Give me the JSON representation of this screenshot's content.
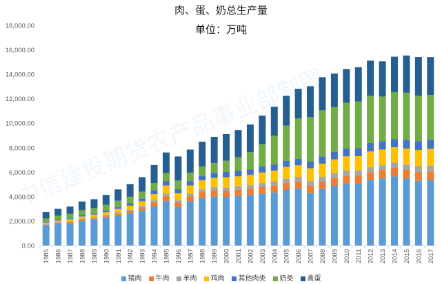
{
  "chart_data": {
    "type": "bar",
    "stacked": true,
    "title": "肉、蛋、奶总生产量",
    "subtitle": "单位：万吨",
    "watermark": "中信建投期货农产品事业部制图",
    "xlabel": "",
    "ylabel": "",
    "ylim": [
      0,
      18000
    ],
    "yticks": [
      "0.00",
      "2,000.00",
      "4,000.00",
      "6,000.00",
      "8,000.00",
      "10,000.00",
      "12,000.00",
      "14,000.00",
      "16,000.00",
      "18,000.00"
    ],
    "grid": false,
    "legend": "bottom",
    "categories": [
      "1985",
      "1986",
      "1987",
      "1988",
      "1989",
      "1990",
      "1991",
      "1992",
      "1993",
      "1994",
      "1995",
      "1996",
      "1997",
      "1998",
      "1999",
      "2000",
      "2001",
      "2002",
      "2003",
      "2004",
      "2005",
      "2006",
      "2007",
      "2008",
      "2009",
      "2010",
      "2011",
      "2012",
      "2013",
      "2014",
      "2015",
      "2016",
      "2017"
    ],
    "series": [
      {
        "name": "猪肉",
        "color": "#5B9BD5",
        "values": [
          1655,
          1796,
          1835,
          2018,
          2123,
          2281,
          2452,
          2635,
          2854,
          3205,
          3648,
          3158,
          3596,
          3884,
          4006,
          3966,
          4052,
          4123,
          4239,
          4341,
          4555,
          4650,
          4288,
          4621,
          4891,
          5071,
          5060,
          5343,
          5493,
          5671,
          5487,
          5299,
          5340
        ]
      },
      {
        "name": "牛肉",
        "color": "#ED7D31",
        "values": [
          47,
          59,
          79,
          96,
          107,
          126,
          154,
          180,
          234,
          327,
          415,
          356,
          441,
          480,
          505,
          513,
          509,
          522,
          543,
          560,
          568,
          577,
          613,
          613,
          636,
          653,
          648,
          662,
          673,
          690,
          700,
          717,
          726
        ]
      },
      {
        "name": "羊肉",
        "color": "#A5A5A5",
        "values": [
          59,
          62,
          72,
          80,
          96,
          107,
          118,
          125,
          137,
          161,
          202,
          181,
          213,
          235,
          251,
          264,
          272,
          284,
          309,
          333,
          350,
          364,
          383,
          380,
          389,
          399,
          393,
          401,
          408,
          428,
          440,
          460,
          471
        ]
      },
      {
        "name": "鸡肉",
        "color": "#FFC000",
        "values": [
          108,
          127,
          150,
          185,
          197,
          223,
          273,
          319,
          400,
          524,
          647,
          578,
          662,
          731,
          772,
          826,
          827,
          848,
          879,
          894,
          953,
          974,
          1028,
          1082,
          1127,
          1172,
          1212,
          1288,
          1275,
          1247,
          1299,
          1340,
          1376
        ]
      },
      {
        "name": "其他肉类",
        "color": "#4472C4",
        "values": [
          58,
          68,
          80,
          100,
          106,
          120,
          147,
          172,
          216,
          282,
          348,
          311,
          357,
          394,
          415,
          445,
          446,
          457,
          473,
          481,
          513,
          524,
          554,
          583,
          607,
          631,
          652,
          693,
          686,
          671,
          699,
          722,
          741
        ]
      },
      {
        "name": "奶类",
        "color": "#70AD47",
        "values": [
          289,
          333,
          379,
          419,
          436,
          475,
          525,
          564,
          563,
          609,
          673,
          736,
          681,
          745,
          807,
          919,
          1123,
          1400,
          1849,
          2368,
          2865,
          3302,
          3633,
          3781,
          3678,
          3748,
          3811,
          3875,
          3650,
          3841,
          3870,
          3712,
          3655
        ]
      },
      {
        "name": "禽蛋",
        "color": "#255E91",
        "values": [
          535,
          555,
          590,
          696,
          720,
          795,
          922,
          1020,
          1180,
          1479,
          1677,
          1965,
          1897,
          2021,
          2135,
          2182,
          2210,
          2266,
          2333,
          2371,
          2438,
          2424,
          2529,
          2702,
          2743,
          2763,
          2811,
          2861,
          2876,
          2894,
          3046,
          3161,
          3096
        ]
      }
    ]
  }
}
